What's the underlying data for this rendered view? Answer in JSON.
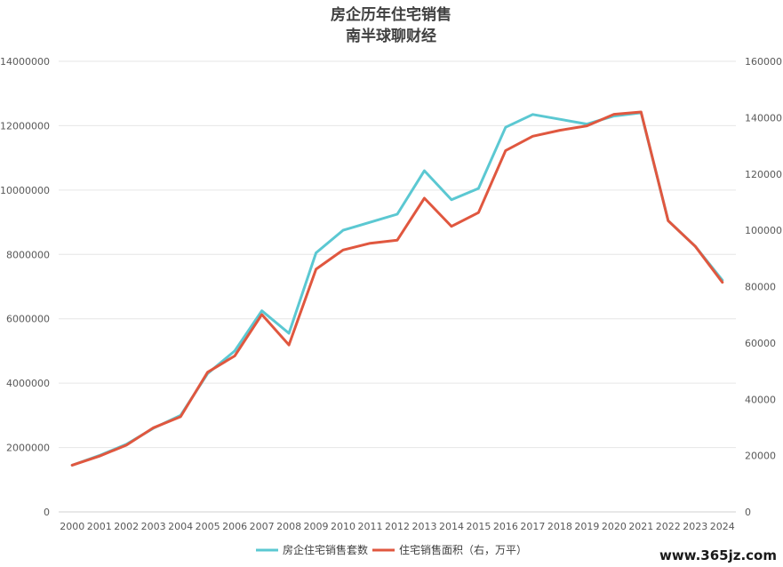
{
  "chart_data": {
    "type": "line",
    "title": "房企历年住宅销售",
    "subtitle": "南半球聊财经",
    "categories": [
      "2000",
      "2001",
      "2002",
      "2003",
      "2004",
      "2005",
      "2006",
      "2007",
      "2008",
      "2009",
      "2010",
      "2011",
      "2012",
      "2013",
      "2014",
      "2015",
      "2016",
      "2017",
      "2018",
      "2019",
      "2020",
      "2021",
      "2022",
      "2023",
      "2024"
    ],
    "series": [
      {
        "name": "房企住宅销售套数",
        "axis": "left",
        "color": "#5BC8D2",
        "values": [
          1450000,
          1750000,
          2100000,
          2600000,
          3000000,
          4300000,
          5000000,
          6250000,
          5550000,
          8050000,
          8750000,
          9000000,
          9250000,
          10600000,
          9700000,
          10050000,
          11950000,
          12350000,
          12200000,
          12050000,
          12300000,
          12400000,
          9050000,
          8250000,
          7200000
        ]
      },
      {
        "name": "住宅销售面积（右，万平）",
        "axis": "right",
        "color": "#E0573F",
        "values": [
          16600,
          19800,
          23700,
          29900,
          33800,
          49600,
          55400,
          70100,
          59300,
          86200,
          93000,
          95400,
          96500,
          111400,
          101400,
          106300,
          128300,
          133400,
          135500,
          137100,
          141200,
          142000,
          103400,
          94300,
          81500
        ]
      }
    ],
    "y_left": {
      "min": 0,
      "max": 14000000,
      "ticks": [
        "0",
        "2000000",
        "4000000",
        "6000000",
        "8000000",
        "10000000",
        "12000000",
        "14000000"
      ]
    },
    "y_right": {
      "min": 0,
      "max": 160000,
      "ticks": [
        "0",
        "20000",
        "40000",
        "60000",
        "80000",
        "100000",
        "120000",
        "140000",
        "160000"
      ]
    },
    "grid": true,
    "legend_position": "bottom"
  },
  "watermark": "www.365jz.com"
}
